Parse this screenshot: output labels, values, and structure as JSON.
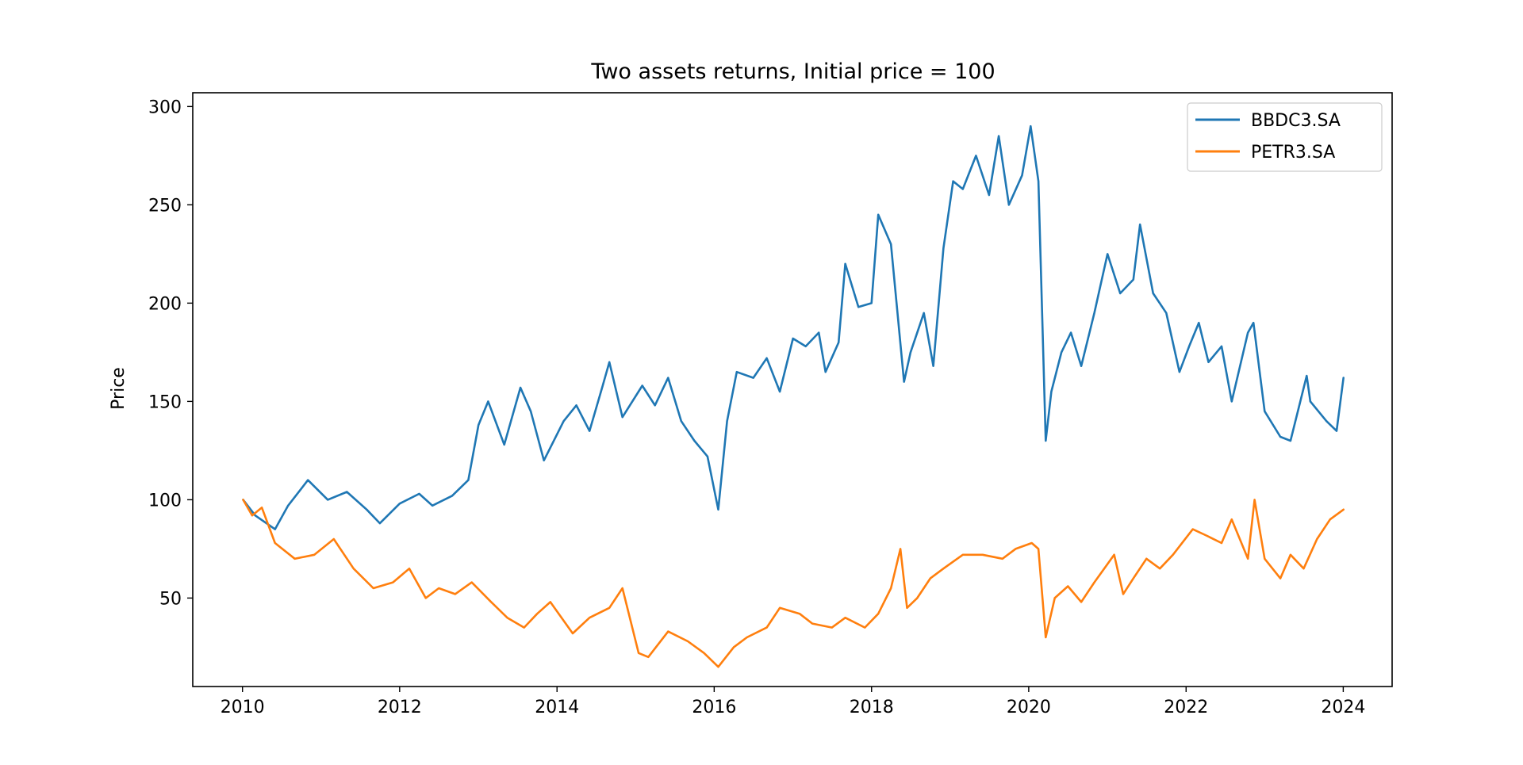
{
  "chart_data": {
    "type": "line",
    "title": "Two assets returns, Initial price = 100",
    "xlabel": "",
    "ylabel": "Price",
    "xlim": [
      "2009-05-15",
      "2024-08-15"
    ],
    "ylim": [
      5,
      307
    ],
    "x_ticks": [
      "2010",
      "2012",
      "2014",
      "2016",
      "2018",
      "2020",
      "2022",
      "2024"
    ],
    "y_ticks": [
      50,
      100,
      150,
      200,
      250,
      300
    ],
    "grid": false,
    "legend_position": "top-right",
    "series": [
      {
        "name": "BBDC3.SA",
        "color": "#1f77b4",
        "x": [
          "2010-01-04",
          "2010-03-01",
          "2010-06-01",
          "2010-08-01",
          "2010-11-01",
          "2011-02-01",
          "2011-05-01",
          "2011-08-01",
          "2011-10-01",
          "2012-01-01",
          "2012-04-01",
          "2012-06-01",
          "2012-09-01",
          "2012-11-15",
          "2013-01-01",
          "2013-02-15",
          "2013-05-01",
          "2013-07-15",
          "2013-09-01",
          "2013-11-01",
          "2014-02-01",
          "2014-04-01",
          "2014-06-01",
          "2014-08-01",
          "2014-09-01",
          "2014-11-01",
          "2015-02-01",
          "2015-04-01",
          "2015-06-01",
          "2015-08-01",
          "2015-10-01",
          "2015-12-01",
          "2016-01-20",
          "2016-03-01",
          "2016-04-15",
          "2016-07-01",
          "2016-09-01",
          "2016-11-01",
          "2017-01-01",
          "2017-03-01",
          "2017-05-01",
          "2017-06-01",
          "2017-08-01",
          "2017-09-01",
          "2017-11-01",
          "2018-01-01",
          "2018-02-01",
          "2018-04-01",
          "2018-06-01",
          "2018-07-01",
          "2018-09-01",
          "2018-10-15",
          "2018-12-01",
          "2019-01-15",
          "2019-03-01",
          "2019-05-01",
          "2019-07-01",
          "2019-08-15",
          "2019-10-01",
          "2019-12-01",
          "2020-01-10",
          "2020-02-15",
          "2020-03-20",
          "2020-04-15",
          "2020-06-01",
          "2020-07-15",
          "2020-09-01",
          "2020-11-01",
          "2021-01-01",
          "2021-03-01",
          "2021-05-01",
          "2021-06-01",
          "2021-08-01",
          "2021-10-01",
          "2021-12-01",
          "2022-01-15",
          "2022-03-01",
          "2022-04-15",
          "2022-06-15",
          "2022-08-01",
          "2022-10-15",
          "2022-11-10",
          "2023-01-01",
          "2023-03-15",
          "2023-05-01",
          "2023-07-15",
          "2023-08-01",
          "2023-10-15",
          "2023-12-01",
          "2024-01-02"
        ],
        "values": [
          100,
          92,
          85,
          97,
          110,
          100,
          104,
          95,
          88,
          98,
          103,
          97,
          102,
          110,
          138,
          150,
          128,
          157,
          145,
          120,
          140,
          148,
          135,
          158,
          170,
          142,
          158,
          148,
          162,
          140,
          130,
          122,
          95,
          140,
          165,
          162,
          172,
          155,
          182,
          178,
          185,
          165,
          180,
          220,
          198,
          200,
          245,
          230,
          160,
          175,
          195,
          168,
          228,
          262,
          258,
          275,
          255,
          285,
          250,
          265,
          290,
          262,
          130,
          155,
          175,
          185,
          168,
          195,
          225,
          205,
          212,
          240,
          205,
          195,
          165,
          178,
          190,
          170,
          178,
          150,
          185,
          190,
          145,
          132,
          130,
          163,
          150,
          140,
          135,
          162
        ]
      },
      {
        "name": "PETR3.SA",
        "color": "#ff7f0e",
        "x": [
          "2010-01-04",
          "2010-02-15",
          "2010-04-01",
          "2010-06-01",
          "2010-09-01",
          "2010-12-01",
          "2011-03-01",
          "2011-06-01",
          "2011-09-01",
          "2011-12-01",
          "2012-02-15",
          "2012-05-01",
          "2012-07-01",
          "2012-09-15",
          "2012-12-01",
          "2013-03-01",
          "2013-05-15",
          "2013-08-01",
          "2013-10-01",
          "2013-12-01",
          "2014-03-15",
          "2014-06-01",
          "2014-09-01",
          "2014-11-01",
          "2015-01-15",
          "2015-03-01",
          "2015-06-01",
          "2015-09-01",
          "2015-11-15",
          "2016-01-20",
          "2016-04-01",
          "2016-06-01",
          "2016-09-01",
          "2016-11-01",
          "2017-02-01",
          "2017-04-01",
          "2017-07-01",
          "2017-09-01",
          "2017-12-01",
          "2018-02-01",
          "2018-04-01",
          "2018-05-15",
          "2018-06-15",
          "2018-08-01",
          "2018-10-01",
          "2018-12-01",
          "2019-03-01",
          "2019-06-01",
          "2019-09-01",
          "2019-11-01",
          "2020-01-15",
          "2020-02-15",
          "2020-03-20",
          "2020-05-01",
          "2020-07-01",
          "2020-09-01",
          "2020-11-01",
          "2021-02-01",
          "2021-03-15",
          "2021-05-01",
          "2021-07-01",
          "2021-09-01",
          "2021-11-01",
          "2022-02-01",
          "2022-04-01",
          "2022-06-15",
          "2022-08-01",
          "2022-10-15",
          "2022-11-15",
          "2023-01-01",
          "2023-03-15",
          "2023-05-01",
          "2023-07-01",
          "2023-09-01",
          "2023-11-01",
          "2024-01-02"
        ],
        "values": [
          100,
          92,
          96,
          78,
          70,
          72,
          80,
          65,
          55,
          58,
          65,
          50,
          55,
          52,
          58,
          48,
          40,
          35,
          42,
          48,
          32,
          40,
          45,
          55,
          22,
          20,
          33,
          28,
          22,
          15,
          25,
          30,
          35,
          45,
          42,
          37,
          35,
          40,
          35,
          42,
          55,
          75,
          45,
          50,
          60,
          65,
          72,
          72,
          70,
          75,
          78,
          75,
          30,
          50,
          56,
          48,
          58,
          72,
          52,
          60,
          70,
          65,
          72,
          85,
          82,
          78,
          90,
          70,
          100,
          70,
          60,
          72,
          65,
          80,
          90,
          95
        ]
      }
    ]
  }
}
